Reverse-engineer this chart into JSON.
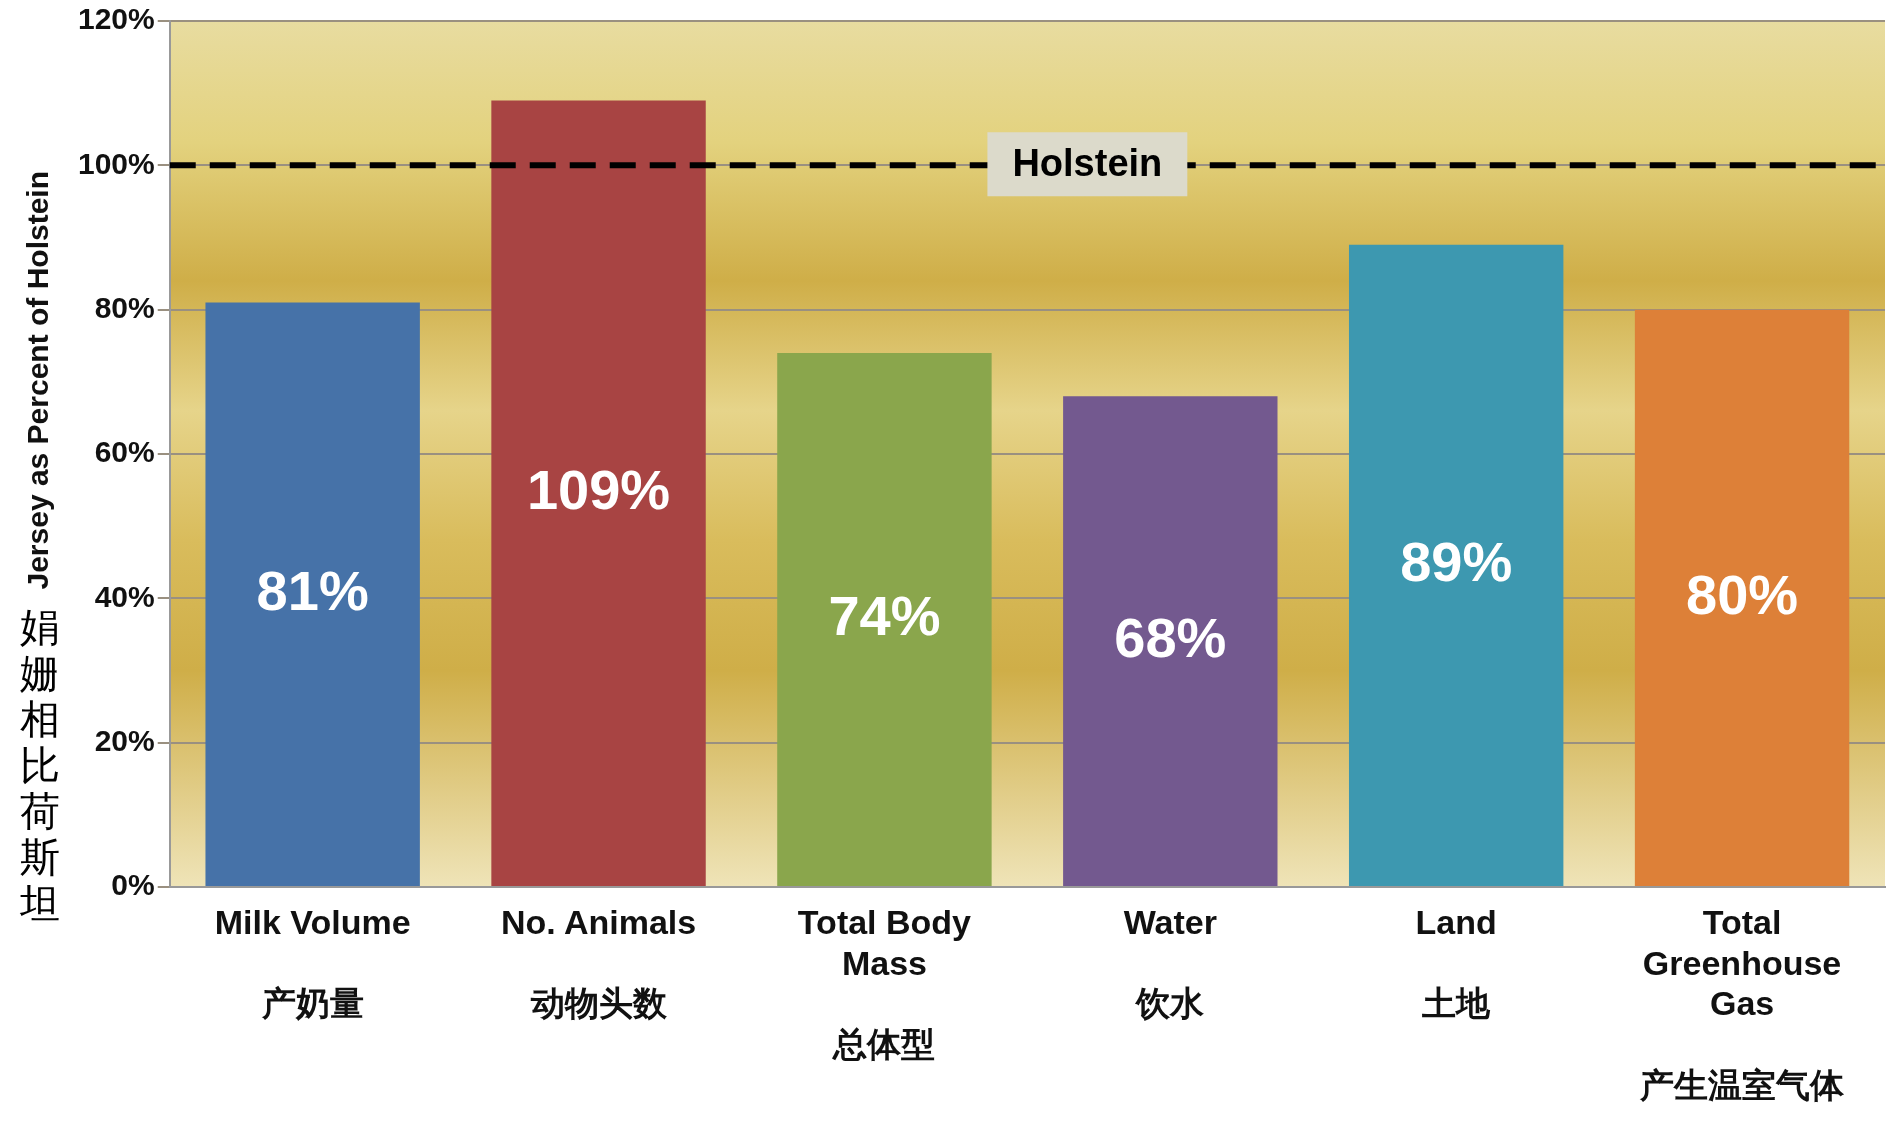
{
  "chart_data": {
    "type": "bar",
    "ylabel": "Jersey as Percent of Holstein\n娟姗相比荷斯坦",
    "categories": [
      "Milk Volume\n产奶量",
      "No. Animals\n动物头数",
      "Total Body Mass\n总体型",
      "Water\n饮水",
      "Land\n土地",
      "Total Greenhouse Gas\n产生温室气体"
    ],
    "values": [
      81,
      109,
      74,
      68,
      89,
      80
    ],
    "value_labels": [
      "81%",
      "109%",
      "74%",
      "68%",
      "89%",
      "80%"
    ],
    "colors": [
      "#4672a8",
      "#a84443",
      "#8aa64c",
      "#73598f",
      "#3d98b0",
      "#dd8038"
    ],
    "ylim": [
      0,
      120
    ],
    "yticks": [
      {
        "value": 0,
        "label": "0%"
      },
      {
        "value": 20,
        "label": "20%"
      },
      {
        "value": 40,
        "label": "40%"
      },
      {
        "value": 60,
        "label": "60%"
      },
      {
        "value": 80,
        "label": "80%"
      },
      {
        "value": 100,
        "label": "100%"
      },
      {
        "value": 120,
        "label": "120%"
      }
    ],
    "ref_lines": [
      {
        "axis": "y",
        "value": 100,
        "label": "Holstein",
        "color": "#000000",
        "line_style": "dashed"
      }
    ],
    "grid": "y",
    "legend": false
  }
}
